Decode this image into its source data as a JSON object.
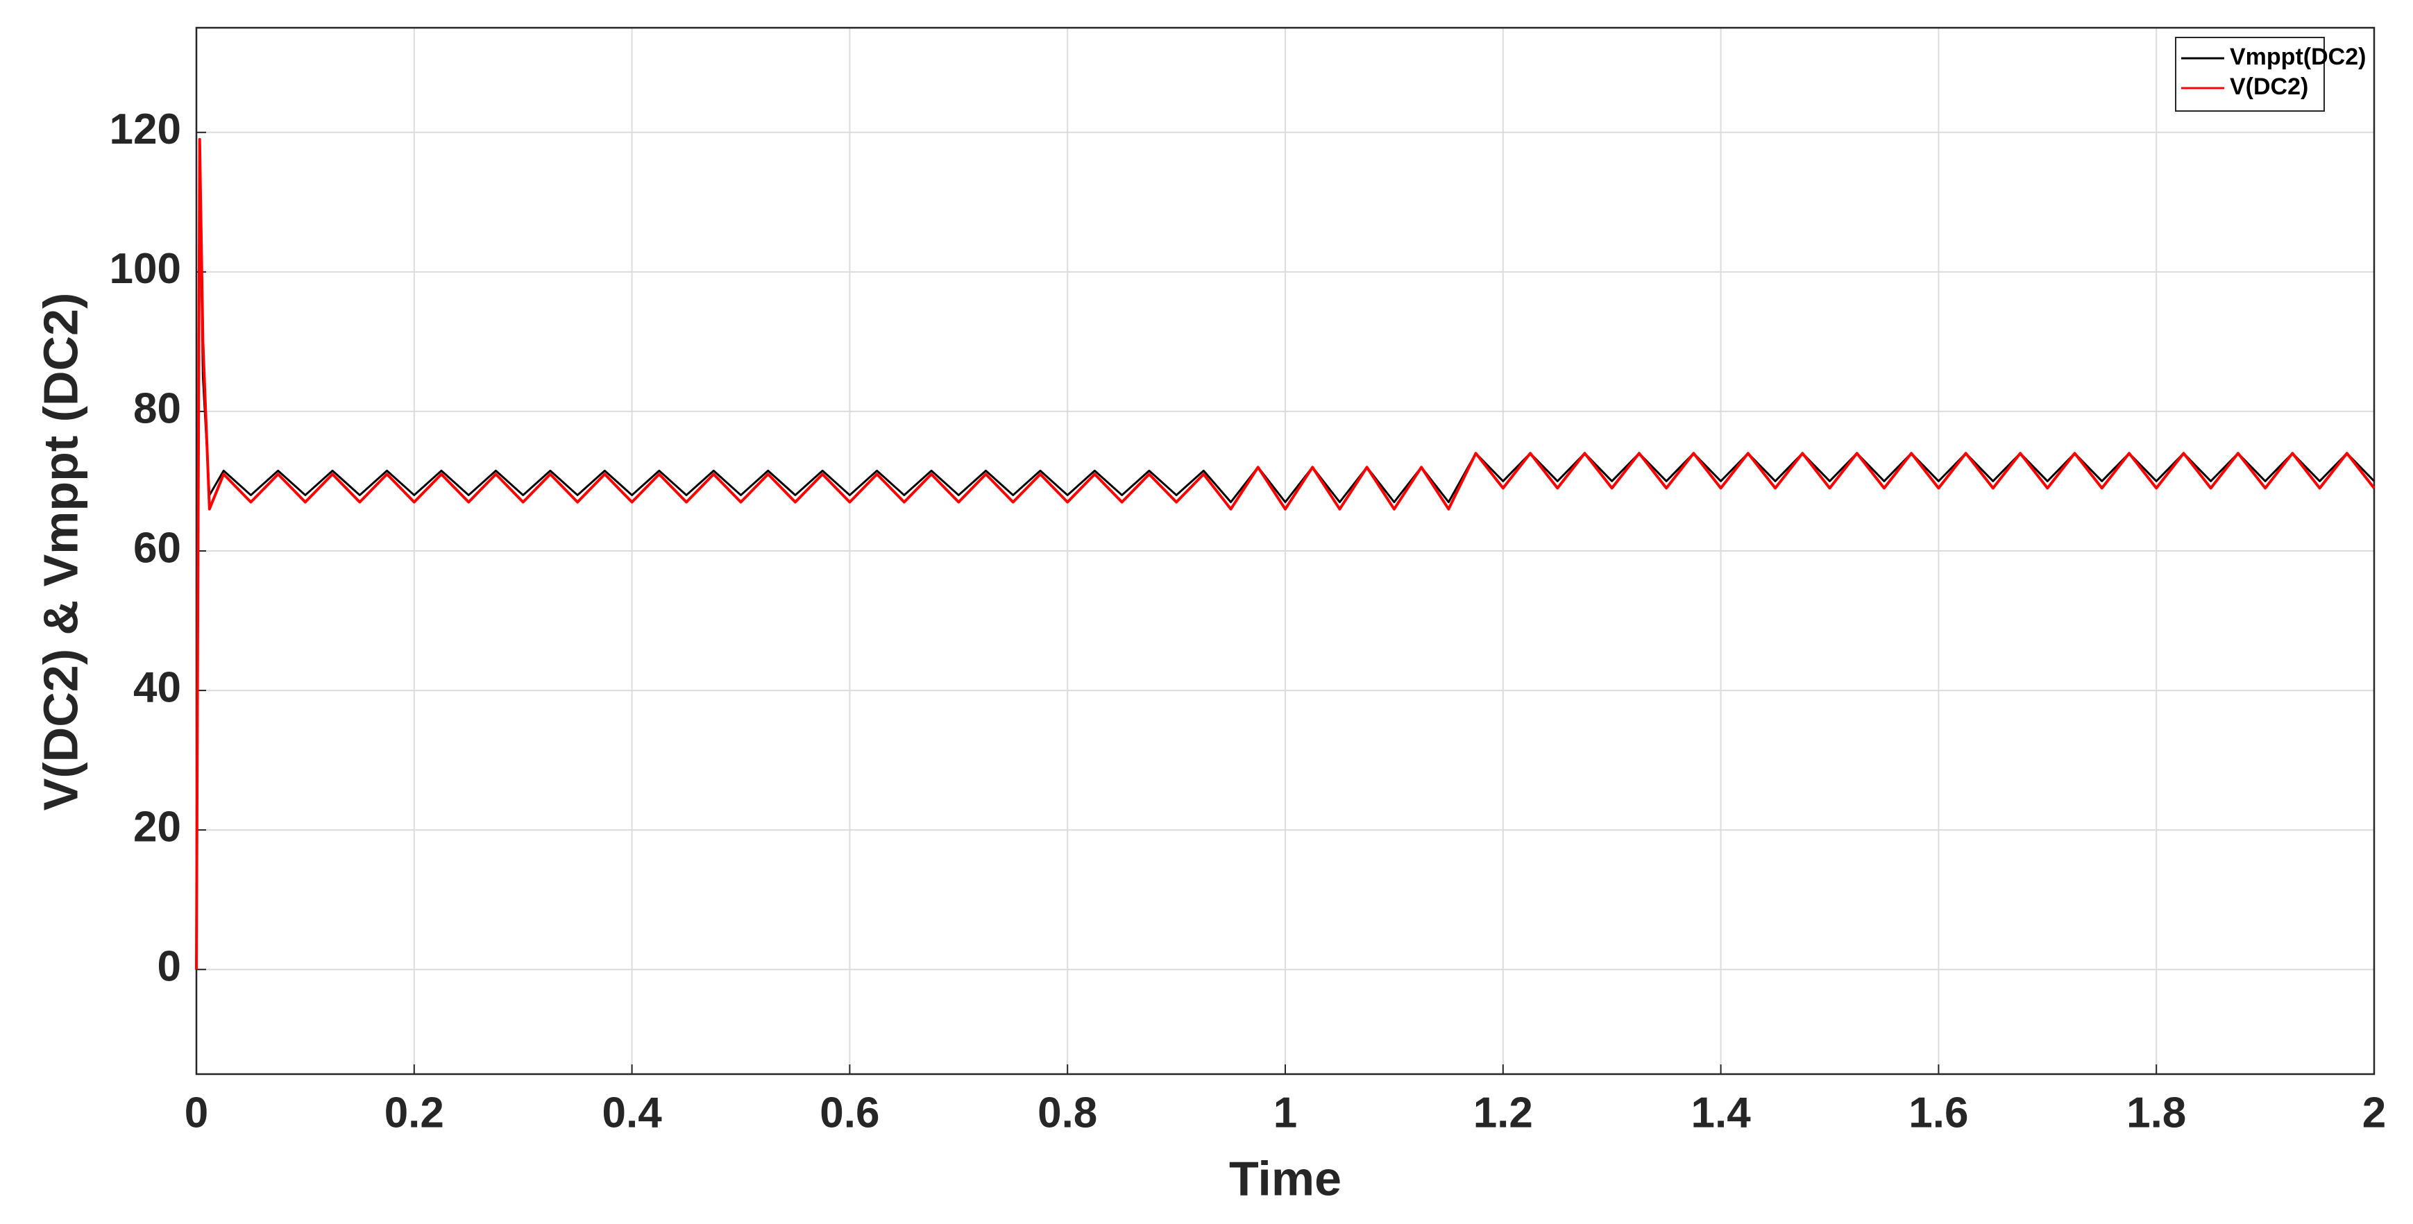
{
  "chart_data": {
    "type": "line",
    "xlabel": "Time",
    "ylabel": "V(DC2) & Vmppt (DC2)",
    "x": [
      0,
      0.003,
      0.006,
      0.012,
      0.025,
      0.05,
      0.075,
      0.1,
      0.125,
      0.15,
      0.175,
      0.2,
      0.225,
      0.25,
      0.275,
      0.3,
      0.325,
      0.35,
      0.375,
      0.4,
      0.425,
      0.45,
      0.475,
      0.5,
      0.525,
      0.55,
      0.575,
      0.6,
      0.625,
      0.65,
      0.675,
      0.7,
      0.725,
      0.75,
      0.775,
      0.8,
      0.825,
      0.85,
      0.875,
      0.9,
      0.925,
      0.95,
      0.975,
      1,
      1.025,
      1.05,
      1.075,
      1.1,
      1.125,
      1.15,
      1.175,
      1.2,
      1.225,
      1.25,
      1.275,
      1.3,
      1.325,
      1.35,
      1.375,
      1.4,
      1.425,
      1.45,
      1.475,
      1.5,
      1.525,
      1.55,
      1.575,
      1.6,
      1.625,
      1.65,
      1.675,
      1.7,
      1.725,
      1.75,
      1.775,
      1.8,
      1.825,
      1.85,
      1.875,
      1.9,
      1.925,
      1.95,
      1.975,
      2
    ],
    "series": [
      {
        "name": "Vmppt(DC2)",
        "color": "#000000",
        "values": [
          0,
          115,
          85,
          68,
          71.5,
          68,
          71.5,
          68,
          71.5,
          68,
          71.5,
          68,
          71.5,
          68,
          71.5,
          68,
          71.5,
          68,
          71.5,
          68,
          71.5,
          68,
          71.5,
          68,
          71.5,
          68,
          71.5,
          68,
          71.5,
          68,
          71.5,
          68,
          71.5,
          68,
          71.5,
          68,
          71.5,
          68,
          71.5,
          68,
          71.5,
          67,
          72,
          67,
          72,
          67,
          72,
          67,
          72,
          67,
          74,
          70,
          74,
          70,
          74,
          70,
          74,
          70,
          74,
          70,
          74,
          70,
          74,
          70,
          74,
          70,
          74,
          70,
          74,
          70,
          74,
          70,
          74,
          70,
          74,
          70,
          74,
          70,
          74,
          70,
          74,
          70,
          74,
          70
        ]
      },
      {
        "name": "V(DC2)",
        "color": "#ff0000",
        "values": [
          0,
          119,
          90,
          66,
          71,
          67,
          71,
          67,
          71,
          67,
          71,
          67,
          71,
          67,
          71,
          67,
          71,
          67,
          71,
          67,
          71,
          67,
          71,
          67,
          71,
          67,
          71,
          67,
          71,
          67,
          71,
          67,
          71,
          67,
          71,
          67,
          71,
          67,
          71,
          67,
          71,
          66,
          72,
          66,
          72,
          66,
          72,
          66,
          72,
          66,
          74,
          69,
          74,
          69,
          74,
          69,
          74,
          69,
          74,
          69,
          74,
          69,
          74,
          69,
          74,
          69,
          74,
          69,
          74,
          69,
          74,
          69,
          74,
          69,
          74,
          69,
          74,
          69,
          74,
          69,
          74,
          69,
          74,
          69
        ]
      }
    ],
    "xlim": [
      0,
      2
    ],
    "xticks": [
      0,
      0.2,
      0.4,
      0.6,
      0.8,
      1,
      1.2,
      1.4,
      1.6,
      1.8,
      2
    ],
    "ylim": [
      -15,
      135
    ],
    "yticks": [
      0,
      20,
      40,
      60,
      80,
      100,
      120
    ],
    "grid": true,
    "legend": "northeast"
  }
}
